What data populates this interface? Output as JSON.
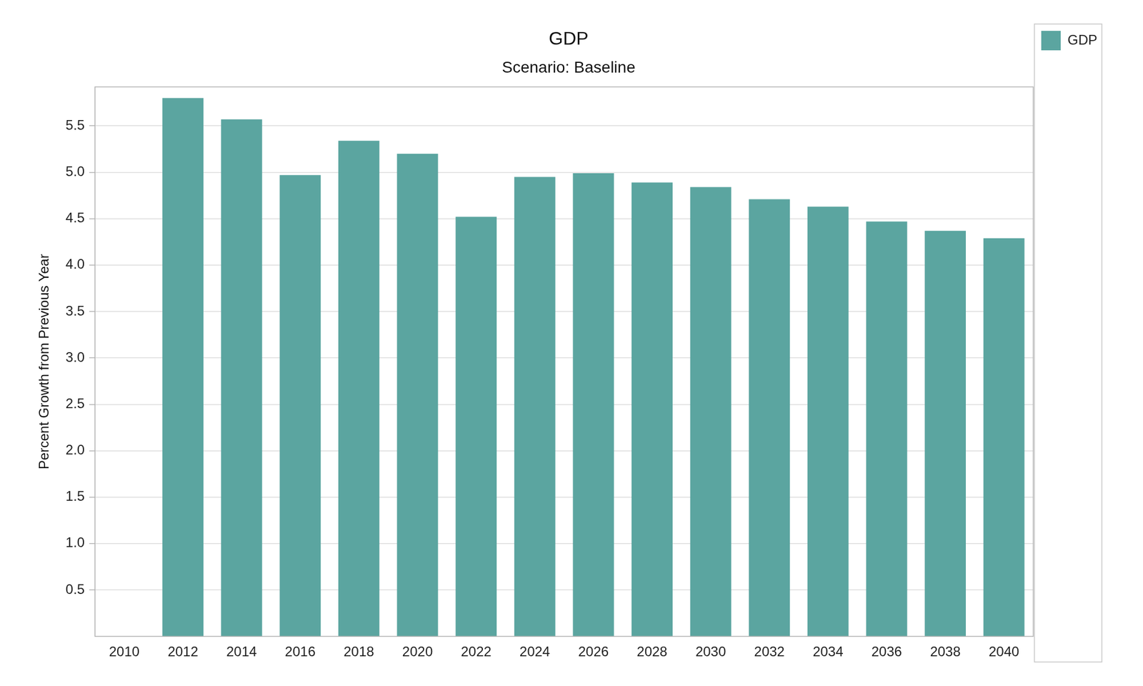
{
  "chart_data": {
    "type": "bar",
    "title": "GDP",
    "subtitle": "Scenario: Baseline",
    "y_label": "Percent Growth from Previous Year",
    "categories": [
      "2010",
      "2012",
      "2014",
      "2016",
      "2018",
      "2020",
      "2022",
      "2024",
      "2026",
      "2028",
      "2030",
      "2032",
      "2034",
      "2036",
      "2038",
      "2040"
    ],
    "series": [
      {
        "name": "GDP",
        "color": "#5ba5a0",
        "values": [
          0,
          5.8,
          5.57,
          4.97,
          5.34,
          5.2,
          4.52,
          4.95,
          4.99,
          4.89,
          4.84,
          4.71,
          4.63,
          4.47,
          4.37,
          4.29
        ]
      }
    ],
    "ylim": [
      0,
      5.92
    ],
    "yticks": [
      0.5,
      {
        "value": 1,
        "label": "1.0"
      },
      1.5,
      {
        "value": 2,
        "label": "2.0"
      },
      2.5,
      {
        "value": 3,
        "label": "3.0"
      },
      3.5,
      {
        "value": 4,
        "label": "4.0"
      },
      4.5,
      {
        "value": 5,
        "label": "5.0"
      },
      5.5
    ],
    "grid": true,
    "legend": "right"
  }
}
